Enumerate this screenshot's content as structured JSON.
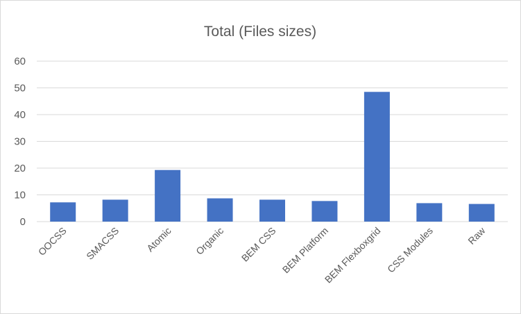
{
  "chart_data": {
    "type": "bar",
    "title": "Total (Files sizes)",
    "categories": [
      "OOCSS",
      "SMACSS",
      "Atomic",
      "Organic",
      "BEM CSS",
      "BEM Platform",
      "BEM Flexboxgrid",
      "CSS Modules",
      "Raw"
    ],
    "series": [
      {
        "values": [
          7.2,
          8.2,
          19.3,
          8.7,
          8.2,
          7.7,
          48.5,
          6.9,
          6.6
        ]
      }
    ],
    "ylim": [
      0,
      60
    ],
    "yticks": [
      0,
      10,
      20,
      30,
      40,
      50,
      60
    ],
    "grid": true,
    "legend": "none",
    "colors": {
      "bar": "#4472c4",
      "grid": "#d9d9d9",
      "text": "#595959"
    }
  }
}
